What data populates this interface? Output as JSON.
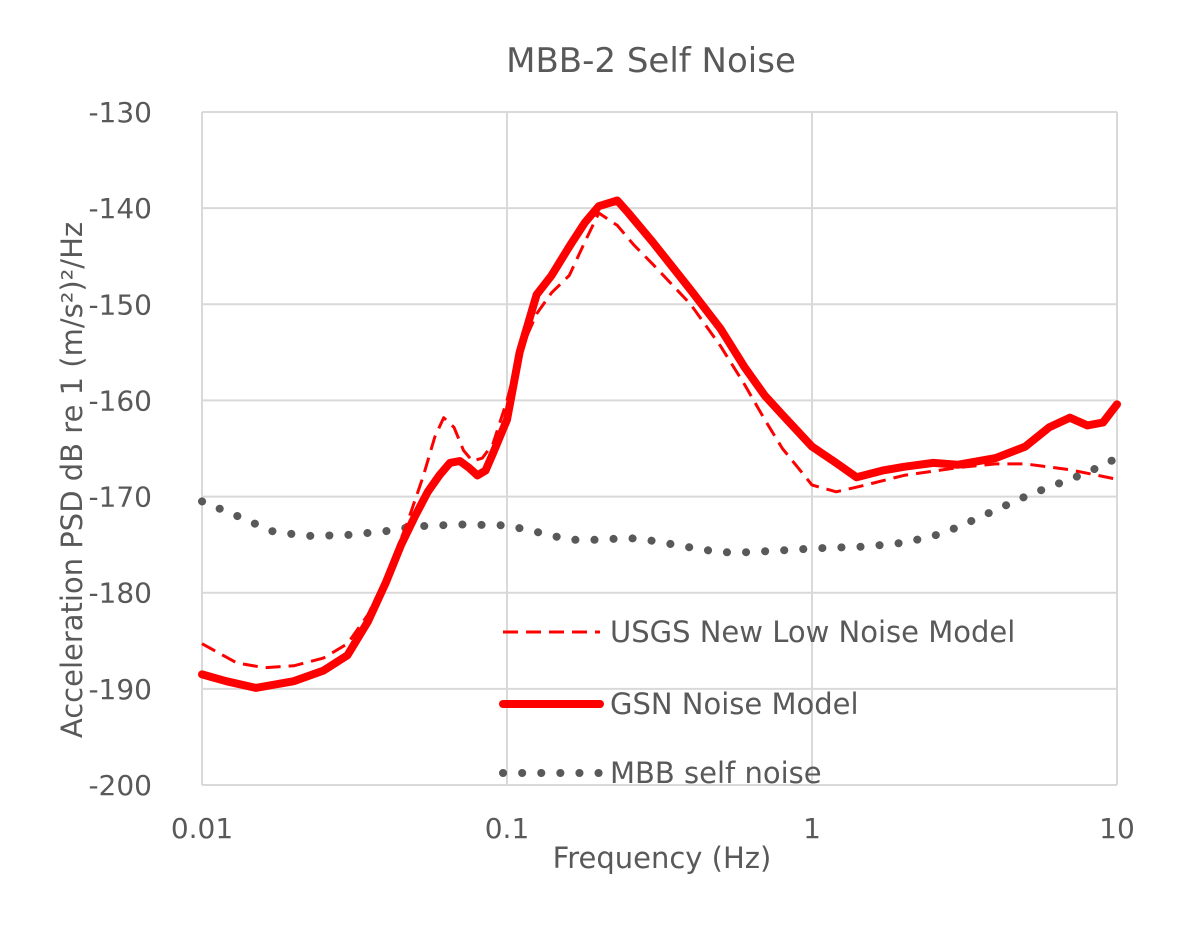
{
  "chart_data": {
    "type": "line",
    "title": "MBB-2 Self Noise",
    "xlabel": "Frequency (Hz)",
    "ylabel": "Acceleration PSD dB re 1 (m/s²)²/Hz",
    "x_scale": "log",
    "xlim": [
      0.01,
      10
    ],
    "ylim": [
      -200,
      -130
    ],
    "x_ticks": [
      0.01,
      0.1,
      1,
      10
    ],
    "x_tick_labels": [
      "0.01",
      "0.1",
      "1",
      "10"
    ],
    "y_ticks": [
      -130,
      -140,
      -150,
      -160,
      -170,
      -180,
      -190,
      -200
    ],
    "y_tick_labels": [
      "-130",
      "-140",
      "-150",
      "-160",
      "-170",
      "-180",
      "-190",
      "-200"
    ],
    "grid": true,
    "legend_position": "lower-right, inside plot",
    "series": [
      {
        "name": "USGS New Low Noise Model",
        "style": "dashed",
        "color": "#ff0000",
        "x": [
          0.01,
          0.013,
          0.016,
          0.02,
          0.025,
          0.03,
          0.035,
          0.04,
          0.047,
          0.053,
          0.058,
          0.062,
          0.067,
          0.072,
          0.077,
          0.083,
          0.09,
          0.1,
          0.11,
          0.125,
          0.14,
          0.16,
          0.18,
          0.2,
          0.23,
          0.26,
          0.3,
          0.4,
          0.5,
          0.6,
          0.7,
          0.8,
          1.0,
          1.2,
          1.5,
          2.0,
          3.0,
          4.0,
          5.0,
          7.0,
          10.0
        ],
        "y": [
          -185.3,
          -187.3,
          -187.8,
          -187.6,
          -186.8,
          -185.3,
          -182.3,
          -178.5,
          -172.8,
          -168.0,
          -163.8,
          -161.8,
          -162.8,
          -165.2,
          -166.3,
          -166.0,
          -164.5,
          -160.0,
          -155.0,
          -151.0,
          -148.8,
          -147.0,
          -143.5,
          -140.5,
          -141.8,
          -143.8,
          -145.8,
          -150.0,
          -154.3,
          -158.3,
          -162.0,
          -165.0,
          -168.8,
          -169.5,
          -168.8,
          -167.8,
          -167.0,
          -166.6,
          -166.6,
          -167.2,
          -168.2
        ]
      },
      {
        "name": "GSN Noise Model",
        "style": "solid",
        "color": "#ff0000",
        "x": [
          0.01,
          0.012,
          0.015,
          0.02,
          0.025,
          0.03,
          0.035,
          0.04,
          0.045,
          0.05,
          0.055,
          0.06,
          0.065,
          0.07,
          0.075,
          0.08,
          0.085,
          0.09,
          0.1,
          0.11,
          0.125,
          0.14,
          0.16,
          0.18,
          0.2,
          0.23,
          0.25,
          0.3,
          0.4,
          0.5,
          0.6,
          0.7,
          0.8,
          1.0,
          1.2,
          1.4,
          1.7,
          2.0,
          2.5,
          3.0,
          4.0,
          5.0,
          6.0,
          7.0,
          8.0,
          9.0,
          10.0
        ],
        "y": [
          -188.5,
          -189.2,
          -189.9,
          -189.2,
          -188.1,
          -186.5,
          -183.0,
          -179.0,
          -175.0,
          -172.0,
          -169.5,
          -167.8,
          -166.5,
          -166.3,
          -167.0,
          -167.8,
          -167.3,
          -165.5,
          -162.0,
          -155.0,
          -149.0,
          -147.0,
          -144.0,
          -141.5,
          -139.8,
          -139.2,
          -140.5,
          -143.5,
          -148.5,
          -152.5,
          -156.5,
          -159.5,
          -161.5,
          -164.8,
          -166.5,
          -168.0,
          -167.3,
          -166.9,
          -166.5,
          -166.7,
          -166.0,
          -164.8,
          -162.8,
          -161.8,
          -162.6,
          -162.3,
          -160.4
        ]
      },
      {
        "name": "MBB self noise",
        "style": "dotted",
        "color": "#595959",
        "x": [
          0.01,
          0.013,
          0.017,
          0.022,
          0.03,
          0.04,
          0.05,
          0.07,
          0.1,
          0.13,
          0.16,
          0.2,
          0.25,
          0.3,
          0.4,
          0.5,
          0.6,
          0.8,
          1.0,
          1.2,
          1.5,
          2.0,
          2.5,
          3.0,
          4.0,
          5.0,
          6.0,
          7.0,
          8.0,
          10.0
        ],
        "y": [
          -170.5,
          -172.0,
          -173.6,
          -174.1,
          -174.0,
          -173.6,
          -173.1,
          -172.9,
          -173.0,
          -173.8,
          -174.5,
          -174.5,
          -174.3,
          -174.6,
          -175.3,
          -175.8,
          -175.8,
          -175.6,
          -175.4,
          -175.3,
          -175.2,
          -174.8,
          -174.1,
          -173.2,
          -171.4,
          -170.0,
          -169.0,
          -168.2,
          -167.5,
          -166.0
        ]
      }
    ]
  }
}
